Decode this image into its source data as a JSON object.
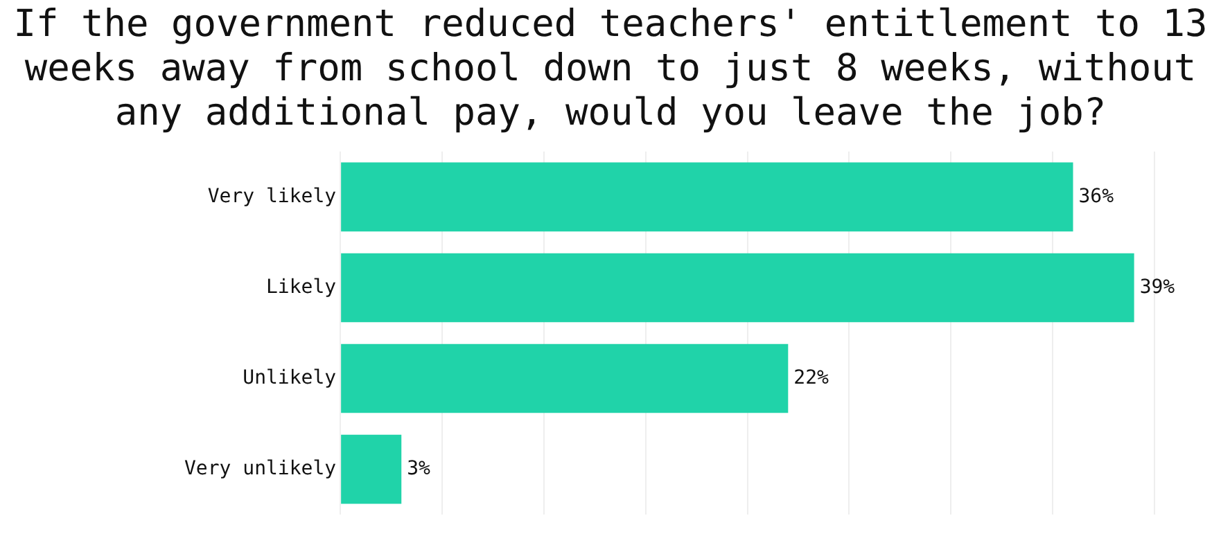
{
  "chart_data": {
    "type": "bar",
    "orientation": "horizontal",
    "title": "If the government reduced teachers' entitlement to 13 weeks away from school down to just 8 weeks, without any additional pay, would you leave the job?",
    "categories": [
      "Very likely",
      "Likely",
      "Unlikely",
      "Very unlikely"
    ],
    "values": [
      36,
      39,
      22,
      3
    ],
    "color": "#20d3a9",
    "value_labels": [
      "36%",
      "39%",
      "22%",
      "3%"
    ],
    "xlim": [
      0,
      40
    ],
    "xticks": [
      {
        "value": 0,
        "label": null
      },
      {
        "value": 5,
        "label": null
      },
      {
        "value": 10,
        "label": null
      },
      {
        "value": 15,
        "label": null
      },
      {
        "value": 20,
        "label": null
      },
      {
        "value": 25,
        "label": null
      },
      {
        "value": 30,
        "label": null
      },
      {
        "value": 35,
        "label": null
      },
      {
        "value": 40,
        "label": null
      }
    ],
    "grid": "x",
    "tick_labels": "y",
    "legend": false
  }
}
